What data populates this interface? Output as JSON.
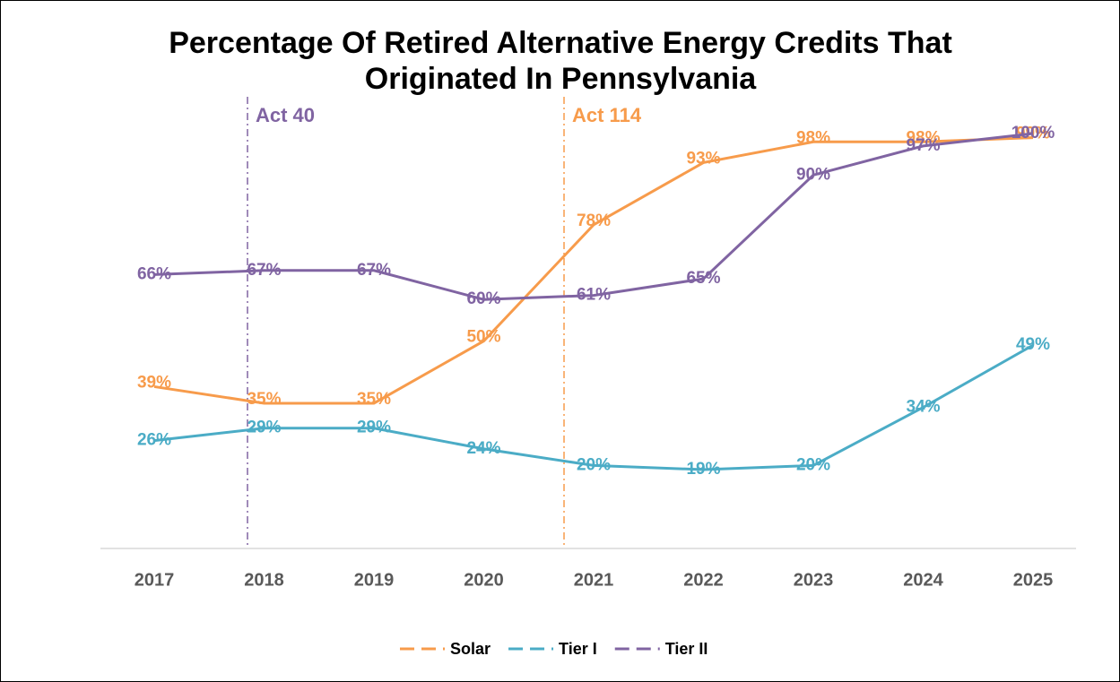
{
  "chart_data": {
    "type": "line",
    "title": "Percentage Of Retired Alternative Energy Credits That Originated In Pennsylvania",
    "categories": [
      "2017",
      "2018",
      "2019",
      "2020",
      "2021",
      "2022",
      "2023",
      "2024",
      "2025"
    ],
    "ylim": [
      0,
      100
    ],
    "series": [
      {
        "name": "Solar",
        "color": "#f79b4b",
        "values": [
          39,
          35,
          35,
          50,
          78,
          93,
          98,
          98,
          99
        ],
        "value_labels": [
          "39%",
          "35%",
          "35%",
          "50%",
          "78%",
          "93%",
          "98%",
          "98%",
          "99%"
        ]
      },
      {
        "name": "Tier I",
        "color": "#4bacc6",
        "values": [
          26,
          29,
          29,
          24,
          20,
          19,
          20,
          34,
          49
        ],
        "value_labels": [
          "26%",
          "29%",
          "29%",
          "24%",
          "20%",
          "19%",
          "20%",
          "34%",
          "49%"
        ]
      },
      {
        "name": "Tier II",
        "color": "#8064a2",
        "values": [
          66,
          67,
          67,
          60,
          61,
          65,
          90,
          97,
          100
        ],
        "value_labels": [
          "66%",
          "67%",
          "67%",
          "60%",
          "61%",
          "65%",
          "90%",
          "97%",
          "100%"
        ]
      }
    ],
    "annotations": [
      {
        "text": "Act 40",
        "color": "#8064a2"
      },
      {
        "text": "Act 114",
        "color": "#f79b4b"
      }
    ]
  }
}
